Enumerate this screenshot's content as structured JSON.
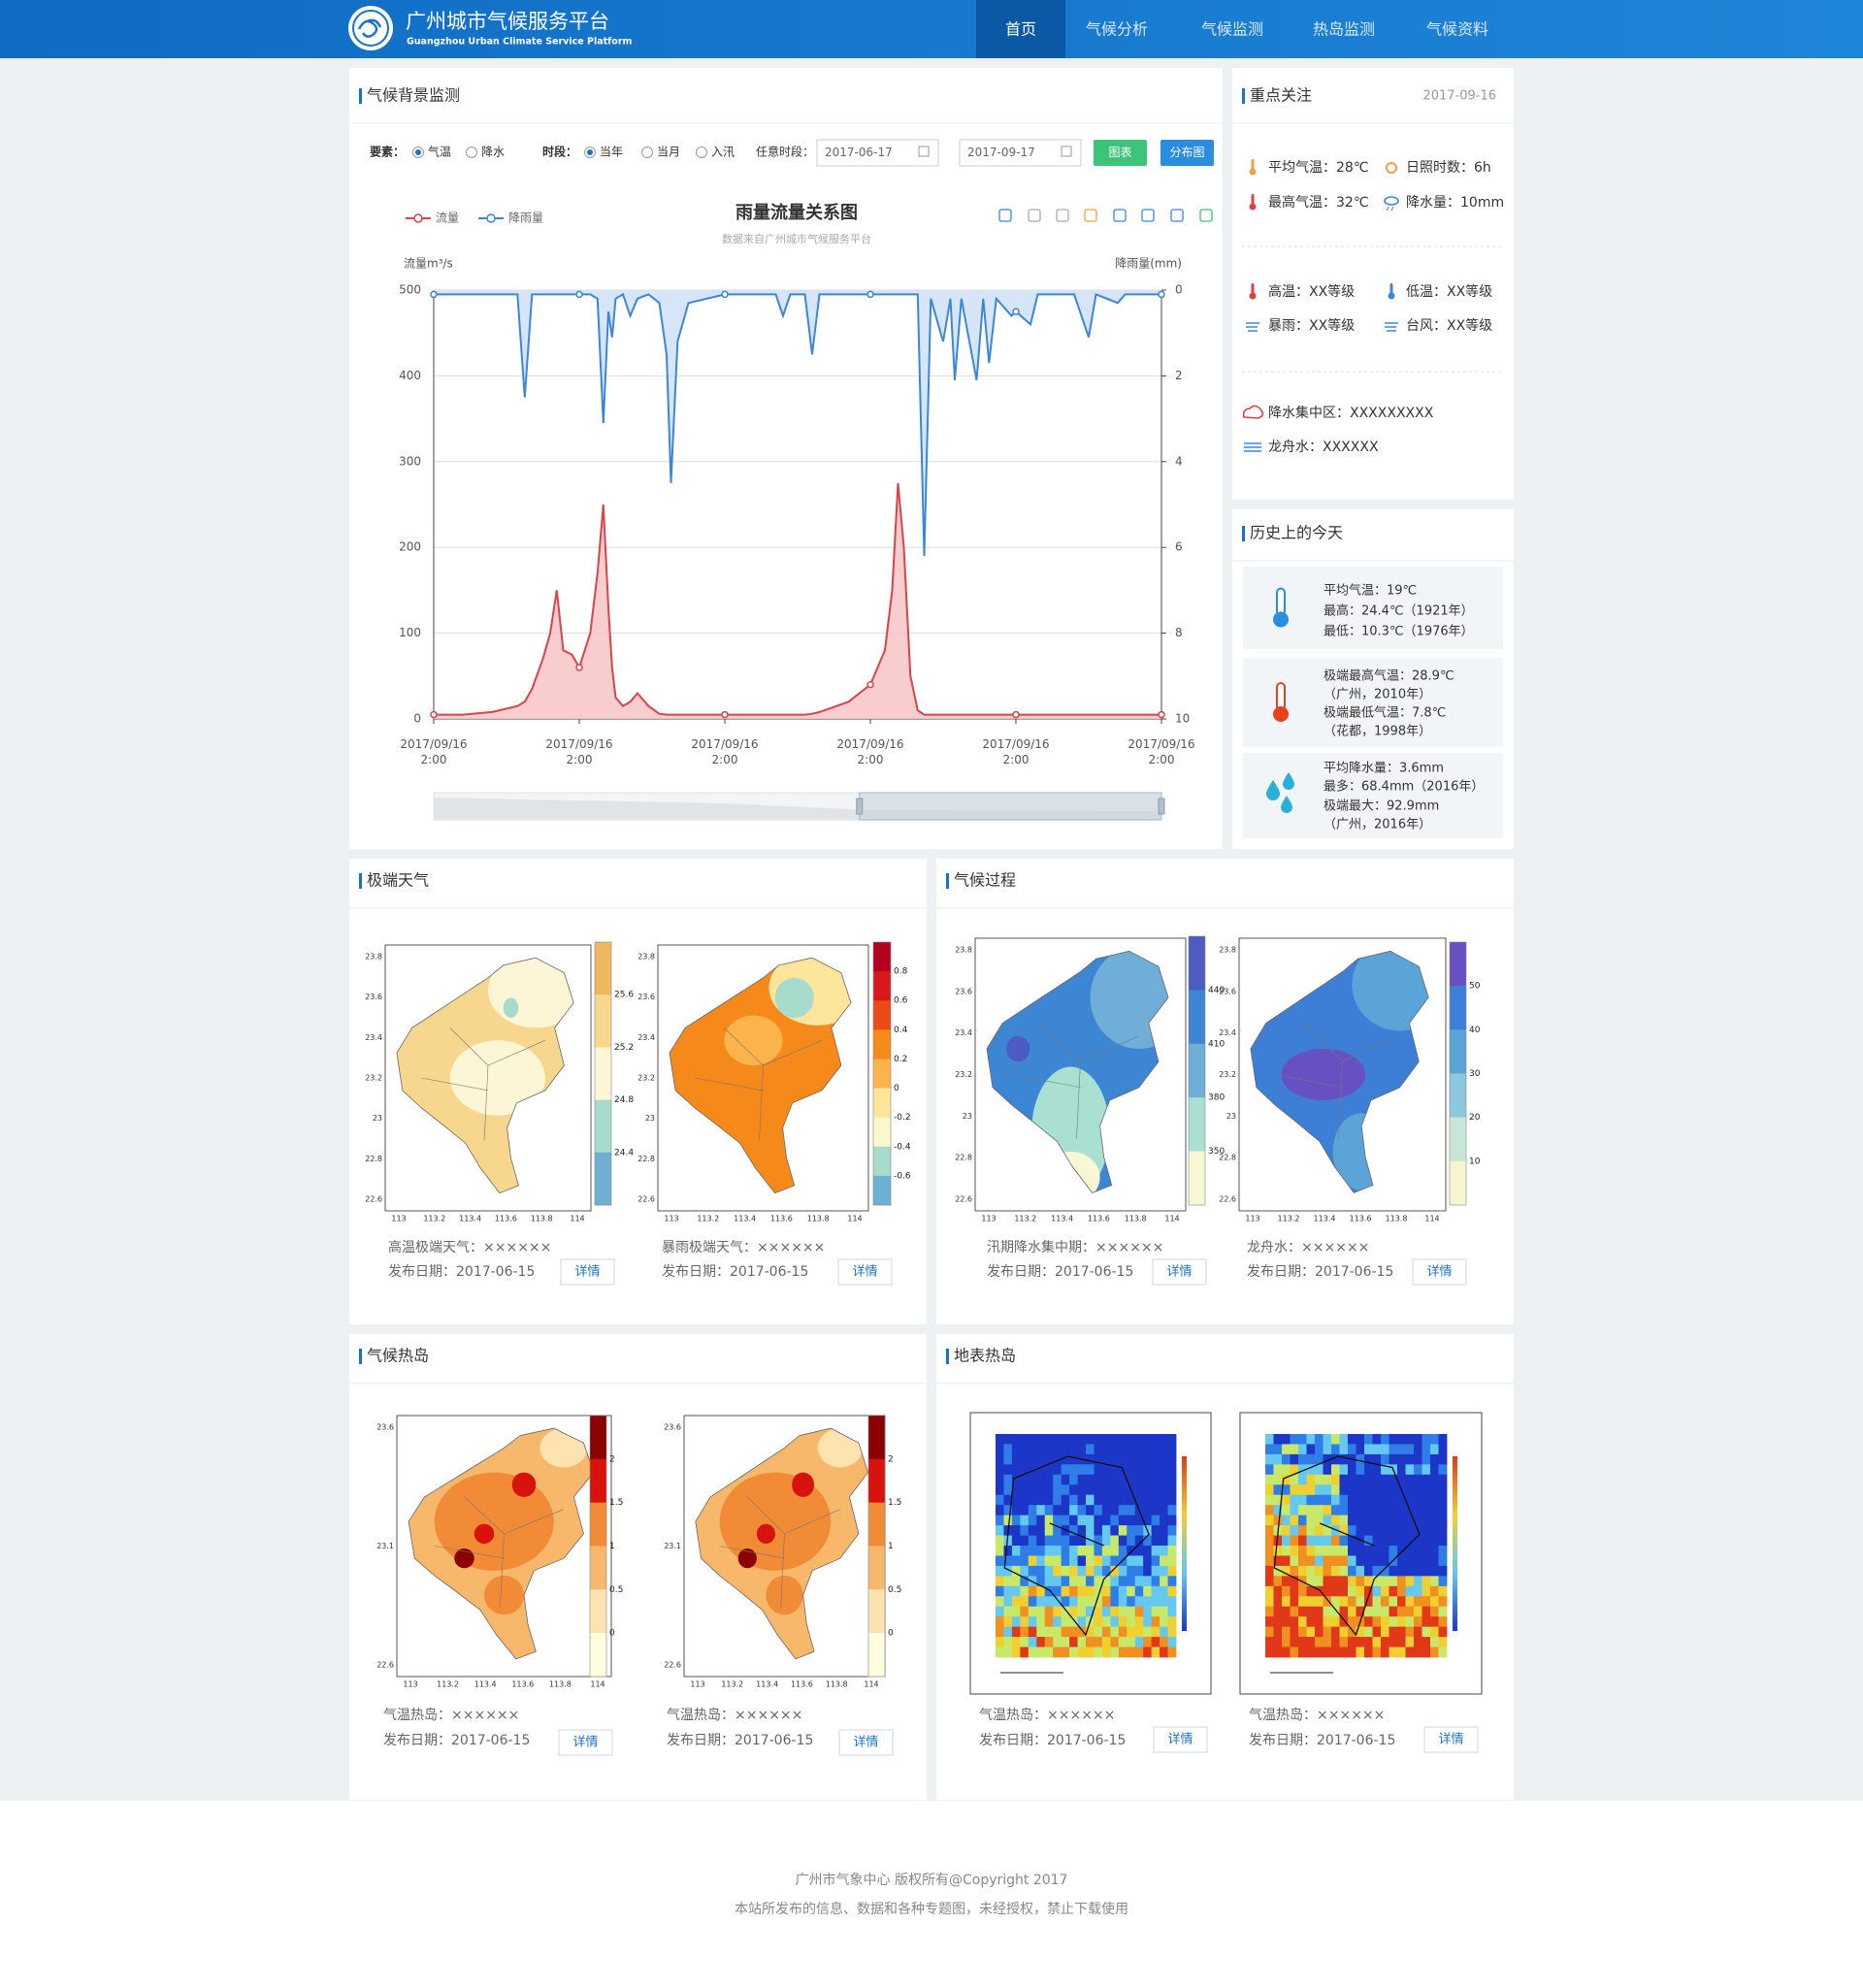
{
  "header": {
    "title": "广州城市气候服务平台",
    "subtitle": "Guangzhou Urban Climate Service Platform",
    "nav": [
      "首页",
      "气候分析",
      "气候监测",
      "热岛监测",
      "气候资料"
    ],
    "active": 0
  },
  "monitor": {
    "title": "气候背景监测",
    "element_label": "要素：",
    "elements": [
      "气温",
      "降水"
    ],
    "element_selected": 0,
    "period_label": "时段：",
    "periods": [
      "当年",
      "当月",
      "入汛"
    ],
    "period_selected": 0,
    "range_label": "任意时段：",
    "start_date": "2017-06-17",
    "end_date": "2017-09-17",
    "buttons": [
      "图表",
      "分布图"
    ]
  },
  "chart_data": {
    "type": "line",
    "title": "雨量流量关系图",
    "subtitle": "数据来自广州城市气候服务平台",
    "ylabel": "流量m³/s",
    "y2label": "降雨量(mm)",
    "x": [
      0,
      4,
      8,
      11.5,
      12.5,
      13.5,
      15,
      16,
      16.9,
      17.8,
      19,
      20,
      21.5,
      22.5,
      23.3,
      24,
      24.5,
      25,
      26,
      27,
      28,
      29.5,
      31,
      32,
      32.6,
      33.5,
      35,
      40,
      47,
      48,
      49,
      51,
      52,
      53,
      57,
      60,
      62,
      63,
      63.8,
      64.6,
      65.5,
      66.5,
      67.4,
      68.3,
      70,
      71,
      71.6,
      72.5,
      74.6,
      75.5,
      76.3,
      77.3,
      79.4,
      80,
      82,
      83,
      88,
      90,
      91,
      94,
      95,
      100
    ],
    "xlim": [
      0,
      100
    ],
    "xticks": [
      {
        "value": 0,
        "label": "2017/09/16 2:00"
      },
      {
        "value": 20,
        "label": "2017/09/16 2:00"
      },
      {
        "value": 40,
        "label": "2017/09/16 2:00"
      },
      {
        "value": 60,
        "label": "2017/09/16 2:00"
      },
      {
        "value": 80,
        "label": "2017/09/16 2:00"
      },
      {
        "value": 100,
        "label": "2017/09/16 2:00"
      }
    ],
    "ylim": [
      0,
      500
    ],
    "yticks": [
      0,
      100,
      200,
      300,
      400,
      500
    ],
    "y2lim": [
      0,
      10
    ],
    "y2ticks": [
      0,
      2,
      4,
      6,
      8,
      10
    ],
    "y2_inverted": true,
    "grid": true,
    "legend": "top-left",
    "series": [
      {
        "name": "流量",
        "color": "#d9434a",
        "area": "#f7c4c6",
        "values": [
          5,
          5,
          8,
          15,
          20,
          35,
          70,
          100,
          150,
          80,
          75,
          60,
          100,
          170,
          250,
          130,
          60,
          25,
          15,
          20,
          30,
          15,
          6,
          5,
          5,
          5,
          5,
          5,
          5,
          5,
          5,
          5,
          6,
          8,
          20,
          40,
          80,
          150,
          275,
          200,
          50,
          10,
          5,
          5,
          5,
          5,
          5,
          5,
          5,
          5,
          5,
          5,
          5,
          5,
          5,
          5,
          5,
          5,
          5,
          5,
          5,
          5
        ]
      },
      {
        "name": "降雨量",
        "color": "#3a87dc",
        "area": "#cfe1f6",
        "axis": "y2",
        "values": [
          0.1,
          0.1,
          0.1,
          0.1,
          2.5,
          0.1,
          0.1,
          0.1,
          0.1,
          0.1,
          0.1,
          0.1,
          0.1,
          0.2,
          3.1,
          0.5,
          1.1,
          0.2,
          0.1,
          0.6,
          0.2,
          0.1,
          0.3,
          1.5,
          4.5,
          1.2,
          0.3,
          0.1,
          0.1,
          0.6,
          0.1,
          0.1,
          1.5,
          0.1,
          0.1,
          0.1,
          0.1,
          0.1,
          0.1,
          0.1,
          0.1,
          0.1,
          6.2,
          0.2,
          1.2,
          0.2,
          2.1,
          0.2,
          2.1,
          0.2,
          1.7,
          0.2,
          0.6,
          0.5,
          0.8,
          0.1,
          0.1,
          1.1,
          0.1,
          0.3,
          0.1,
          0.1
        ]
      }
    ]
  },
  "focus": {
    "title": "重点关注",
    "date": "2017-09-16",
    "stats": [
      "平均气温：28℃",
      "日照时数：6h",
      "最高气温：32℃",
      "降水量：10mm"
    ],
    "warnings": [
      "高温：XX等级",
      "低温：XX等级",
      "暴雨：XX等级",
      "台风：XX等级"
    ],
    "regions": [
      "降水集中区：XXXXXXXXX",
      "龙舟水：XXXXXX"
    ]
  },
  "history": {
    "title": "历史上的今天",
    "cards": [
      [
        "平均气温：19℃",
        "最高：24.4℃（1921年）",
        "最低：10.3℃（1976年）"
      ],
      [
        "极端最高气温：28.9℃",
        "（广州，2010年）",
        "极端最低气温：7.8℃",
        "（花都，1998年）"
      ],
      [
        "平均降水量：3.6mm",
        "最多：68.4mm（2016年）",
        "极端最大：92.9mm",
        "（广州，2016年）"
      ]
    ]
  },
  "sections": [
    {
      "title": "极端天气",
      "lat": [
        23.8,
        23.6,
        23.4,
        23.2,
        23,
        22.8,
        22.6
      ],
      "lon": [
        113,
        113.2,
        113.4,
        113.6,
        113.8,
        114
      ],
      "maps": [
        {
          "caption": "高温极端天气：××××××",
          "date": "发布日期：2017-06-15",
          "button": "详情",
          "colorbar": [
            25.6,
            25.2,
            24.8,
            24.4
          ],
          "colors": [
            "#f0b85e",
            "#f7d68d",
            "#fdf6d6",
            "#a8dbd0",
            "#6fb0d2"
          ]
        },
        {
          "caption": "暴雨极端天气：××××××",
          "date": "发布日期：2017-06-15",
          "button": "详情",
          "colorbar": [
            0.8,
            0.6,
            0.4,
            0.2,
            0,
            -0.2,
            -0.4,
            -0.6
          ],
          "colors": [
            "#b2001e",
            "#d7191c",
            "#ec4a17",
            "#f5891a",
            "#fbb34c",
            "#fde59b",
            "#fbf7cf",
            "#a7dccd",
            "#6cb0d4"
          ]
        }
      ]
    },
    {
      "title": "气候过程",
      "lat": [
        23.8,
        23.6,
        23.4,
        23.2,
        23,
        22.8,
        22.6
      ],
      "lon": [
        113,
        113.2,
        113.4,
        113.6,
        113.8,
        114
      ],
      "maps": [
        {
          "caption": "汛期降水集中期：××××××",
          "date": "发布日期：2017-06-15",
          "button": "详情",
          "colorbar": [
            440,
            410,
            380,
            350
          ],
          "colors": [
            "#4d5bc4",
            "#3d86d4",
            "#6eaed8",
            "#a9e0d2",
            "#f8f7d6"
          ]
        },
        {
          "caption": "龙舟水：××××××",
          "date": "发布日期：2017-06-15",
          "button": "详情",
          "colorbar": [
            50,
            40,
            30,
            20,
            10
          ],
          "colors": [
            "#6751c2",
            "#3d7fd6",
            "#5ba4d8",
            "#8dc8de",
            "#c6e7d8",
            "#f6f5d2"
          ]
        }
      ]
    },
    {
      "title": "气候热岛",
      "lat": [
        23.6,
        23.1,
        22.6
      ],
      "lon": [
        113,
        113.2,
        113.4,
        113.6,
        113.8,
        114
      ],
      "maps": [
        {
          "caption": "气温热岛：××××××",
          "date": "发布日期：2017-06-15",
          "button": "详情",
          "colorbar": [
            2,
            1.5,
            1,
            0.5,
            0
          ],
          "colors": [
            "#8b0000",
            "#d8120c",
            "#f28b36",
            "#f7b86c",
            "#fde3b0",
            "#fffde0"
          ]
        },
        {
          "caption": "气温热岛：××××××",
          "date": "发布日期：2017-06-15",
          "button": "详情",
          "colorbar": [
            2,
            1.5,
            1,
            0.5,
            0
          ],
          "colors": [
            "#8b0000",
            "#d8120c",
            "#f28b36",
            "#f7b86c",
            "#fde3b0",
            "#fffde0"
          ]
        }
      ]
    },
    {
      "title": "地表热岛",
      "maps": [
        {
          "caption": "气温热岛：××××××",
          "date": "发布日期：2017-06-15",
          "button": "详情"
        },
        {
          "caption": "气温热岛：××××××",
          "date": "发布日期：2017-06-15",
          "button": "详情"
        }
      ]
    }
  ],
  "footer": {
    "lines": [
      "广州市气象中心  版权所有@Copyright 2017",
      "本站所发布的信息、数据和各种专题图，未经授权，禁止下载使用"
    ]
  }
}
